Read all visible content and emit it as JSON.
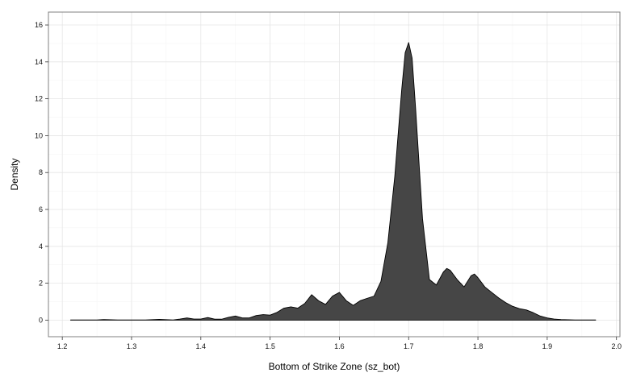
{
  "chart_data": {
    "type": "area",
    "title": "",
    "xlabel": "Bottom of Strike Zone (sz_bot)",
    "ylabel": "Density",
    "xlim": [
      1.18,
      2.005
    ],
    "ylim": [
      -0.9,
      16.7
    ],
    "x_ticks": [
      1.2,
      1.3,
      1.4,
      1.5,
      1.6,
      1.7,
      1.8,
      1.9,
      2.0
    ],
    "x_tick_labels": [
      "1.2",
      "1.3",
      "1.4",
      "1.5",
      "1.6",
      "1.7",
      "1.8",
      "1.9",
      "2.0"
    ],
    "y_ticks": [
      0,
      2,
      4,
      6,
      8,
      10,
      12,
      14,
      16
    ],
    "y_tick_labels": [
      "0",
      "2",
      "4",
      "6",
      "8",
      "10",
      "12",
      "14",
      "16"
    ],
    "grid": true,
    "fill_color": "#464646",
    "series": [
      {
        "x": [
          1.212,
          1.23,
          1.25,
          1.26,
          1.28,
          1.3,
          1.32,
          1.34,
          1.36,
          1.37,
          1.38,
          1.39,
          1.4,
          1.41,
          1.42,
          1.43,
          1.44,
          1.45,
          1.46,
          1.47,
          1.48,
          1.49,
          1.5,
          1.51,
          1.52,
          1.53,
          1.54,
          1.55,
          1.56,
          1.57,
          1.58,
          1.59,
          1.6,
          1.61,
          1.62,
          1.63,
          1.64,
          1.65,
          1.66,
          1.67,
          1.68,
          1.69,
          1.695,
          1.7,
          1.705,
          1.71,
          1.72,
          1.73,
          1.74,
          1.75,
          1.755,
          1.76,
          1.77,
          1.78,
          1.79,
          1.795,
          1.8,
          1.81,
          1.82,
          1.83,
          1.84,
          1.85,
          1.86,
          1.87,
          1.88,
          1.89,
          1.9,
          1.91,
          1.92,
          1.93,
          1.94,
          1.95,
          1.96,
          1.97
        ],
        "y": [
          0.01,
          0.01,
          0.01,
          0.03,
          0.01,
          0.01,
          0.01,
          0.04,
          0.01,
          0.06,
          0.12,
          0.06,
          0.06,
          0.14,
          0.05,
          0.05,
          0.15,
          0.22,
          0.12,
          0.12,
          0.25,
          0.3,
          0.27,
          0.42,
          0.65,
          0.72,
          0.65,
          0.9,
          1.38,
          1.05,
          0.85,
          1.3,
          1.5,
          1.05,
          0.8,
          1.05,
          1.18,
          1.3,
          2.1,
          4.2,
          7.8,
          12.5,
          14.5,
          15.05,
          14.2,
          11.5,
          5.5,
          2.2,
          1.9,
          2.6,
          2.8,
          2.7,
          2.2,
          1.8,
          2.4,
          2.5,
          2.3,
          1.8,
          1.5,
          1.2,
          0.95,
          0.75,
          0.62,
          0.55,
          0.4,
          0.22,
          0.12,
          0.06,
          0.03,
          0.02,
          0.01,
          0.01,
          0.01,
          0.01
        ]
      }
    ]
  }
}
